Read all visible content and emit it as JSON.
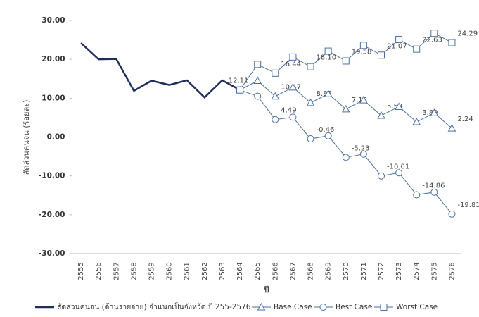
{
  "chart_data": {
    "type": "line",
    "y_label": "สัดส่วนคนจน (ร้อยละ)",
    "x_label": "ปี",
    "categories": [
      "2555",
      "2556",
      "2557",
      "2558",
      "2559",
      "2560",
      "2561",
      "2562",
      "2563",
      "2564",
      "2565",
      "2566",
      "2567",
      "2568",
      "2569",
      "2570",
      "2571",
      "2572",
      "2573",
      "2574",
      "2575",
      "2576"
    ],
    "ylim": [
      -30,
      30
    ],
    "yticks": [
      {
        "value": 30,
        "label": "30.00"
      },
      {
        "value": 20,
        "label": "20.00"
      },
      {
        "value": 10,
        "label": "10.00"
      },
      {
        "value": 0,
        "label": "0.00"
      },
      {
        "value": -10,
        "label": "-10.00"
      },
      {
        "value": -20,
        "label": "-20.00"
      },
      {
        "value": -30,
        "label": "-30.00"
      }
    ],
    "grid": false,
    "legend": "bottom",
    "series": [
      {
        "name": "สัดส่วนคนจน (ด้านรายจ่าย) จำแนกเป็นจังหวัด ปี 255-2576",
        "color": "#1f2d5c",
        "marker": "none",
        "values": [
          24.2,
          20.0,
          20.1,
          11.9,
          14.5,
          13.4,
          14.6,
          10.2,
          14.6,
          12.11,
          null,
          null,
          null,
          null,
          null,
          null,
          null,
          null,
          null,
          null,
          null,
          null
        ],
        "value_labels": [
          null,
          null,
          null,
          null,
          null,
          null,
          null,
          null,
          null,
          "12.11",
          null,
          null,
          null,
          null,
          null,
          null,
          null,
          null,
          null,
          null,
          null,
          null
        ]
      },
      {
        "name": "Base Case",
        "color": "#4a6fa5",
        "marker": "triangle",
        "values": [
          null,
          null,
          null,
          null,
          null,
          null,
          null,
          null,
          null,
          12.11,
          14.5,
          10.47,
          12.8,
          8.82,
          11.1,
          7.18,
          9.5,
          5.53,
          7.8,
          3.89,
          6.2,
          2.24
        ],
        "value_labels": [
          null,
          null,
          null,
          null,
          null,
          null,
          null,
          null,
          null,
          null,
          null,
          "10.47",
          null,
          "8.82",
          null,
          "7.18",
          null,
          "5.53",
          null,
          "3.89",
          null,
          "2.24"
        ]
      },
      {
        "name": "Best Case",
        "color": "#4a6fa5",
        "marker": "circle",
        "values": [
          null,
          null,
          null,
          null,
          null,
          null,
          null,
          null,
          null,
          12.11,
          10.5,
          4.49,
          5.1,
          -0.46,
          0.3,
          -5.23,
          -4.4,
          -10.01,
          -9.2,
          -14.86,
          -14.2,
          -19.81
        ],
        "value_labels": [
          null,
          null,
          null,
          null,
          null,
          null,
          null,
          null,
          null,
          null,
          null,
          "4.49",
          null,
          "-0.46",
          null,
          "-5.23",
          null,
          "-10.01",
          null,
          "-14.86",
          null,
          "-19.81"
        ]
      },
      {
        "name": "Worst Case",
        "color": "#4a6fa5",
        "marker": "square",
        "values": [
          null,
          null,
          null,
          null,
          null,
          null,
          null,
          null,
          null,
          12.11,
          18.7,
          16.44,
          20.6,
          18.1,
          22.1,
          19.58,
          23.6,
          21.07,
          25.1,
          22.63,
          26.7,
          24.29
        ],
        "value_labels": [
          null,
          null,
          null,
          null,
          null,
          null,
          null,
          null,
          null,
          null,
          null,
          "16.44",
          null,
          "18.10",
          null,
          "19.58",
          null,
          "21.07",
          null,
          "22.63",
          null,
          "24.29"
        ]
      }
    ]
  }
}
